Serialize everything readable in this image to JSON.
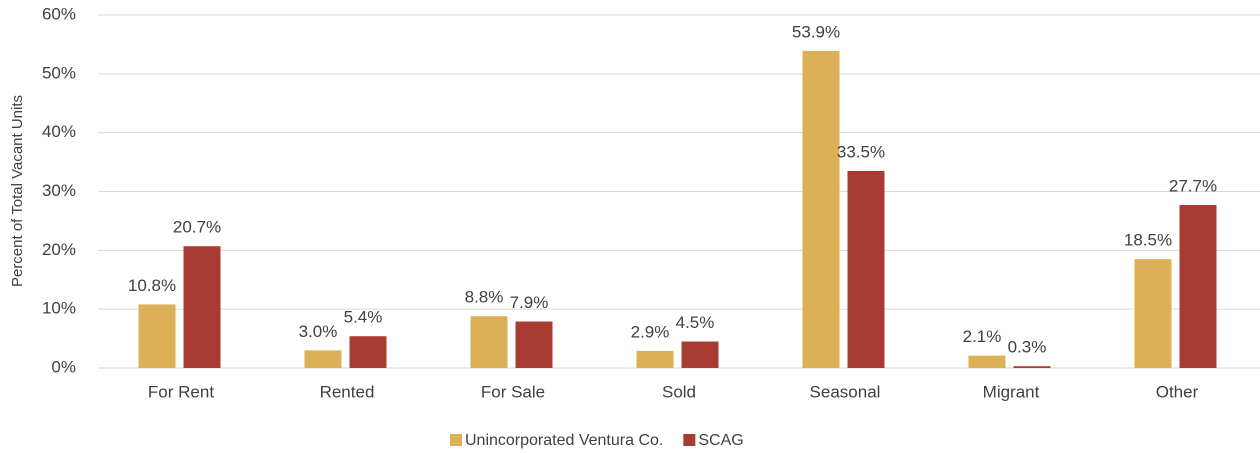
{
  "chart_data": {
    "type": "bar",
    "y_axis_label": "Percent of Total Vacant Units",
    "categories": [
      "For Rent",
      "Rented",
      "For Sale",
      "Sold",
      "Seasonal",
      "Migrant",
      "Other"
    ],
    "series": [
      {
        "name": "Unincorporated Ventura Co.",
        "color": "#dcb057",
        "values": [
          10.8,
          3.0,
          8.8,
          2.9,
          53.9,
          2.1,
          18.5
        ],
        "value_labels": [
          "10.8%",
          "3.0%",
          "8.8%",
          "2.9%",
          "53.9%",
          "2.1%",
          "18.5%"
        ]
      },
      {
        "name": "SCAG",
        "color": "#a93c32",
        "values": [
          20.7,
          5.4,
          7.9,
          4.5,
          33.5,
          0.3,
          27.7
        ],
        "value_labels": [
          "20.7%",
          "5.4%",
          "7.9%",
          "4.5%",
          "33.5%",
          "0.3%",
          "27.7%"
        ]
      }
    ],
    "ylim": [
      0,
      60
    ],
    "yticks": [
      {
        "value": 0,
        "label": "0%"
      },
      {
        "value": 10,
        "label": "10%"
      },
      {
        "value": 20,
        "label": "20%"
      },
      {
        "value": 30,
        "label": "30%"
      },
      {
        "value": 40,
        "label": "40%"
      },
      {
        "value": 50,
        "label": "50%"
      },
      {
        "value": 60,
        "label": "60%"
      }
    ],
    "grid": true,
    "legend": "bottom"
  }
}
